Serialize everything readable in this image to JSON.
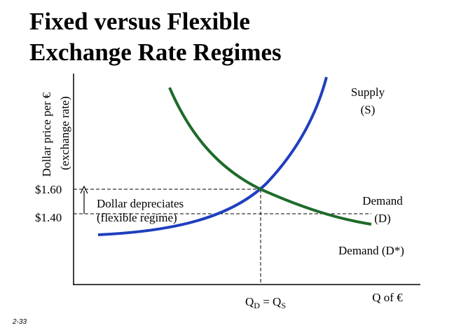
{
  "header": {
    "title_lines": [
      "Fixed versus Flexible",
      "Exchange Rate Regimes"
    ]
  },
  "y_axis": {
    "label_lines": [
      "Dollar price per €",
      "(exchange rate)"
    ],
    "price_labels": [
      "$1.60",
      "$1.40"
    ]
  },
  "x_axis": {
    "label": "Q of €",
    "equilibrium_parts": [
      "Q",
      "D",
      " = Q",
      "S"
    ]
  },
  "annotation": {
    "lines": [
      "Dollar depreciates",
      "(flexible regime)"
    ]
  },
  "curves": {
    "supply": [
      "Supply",
      "(S)"
    ],
    "demand": [
      "Demand",
      "(D)"
    ],
    "demand_shifted": "Demand (D*)"
  },
  "footer": {
    "slide_number": "2-33"
  }
}
